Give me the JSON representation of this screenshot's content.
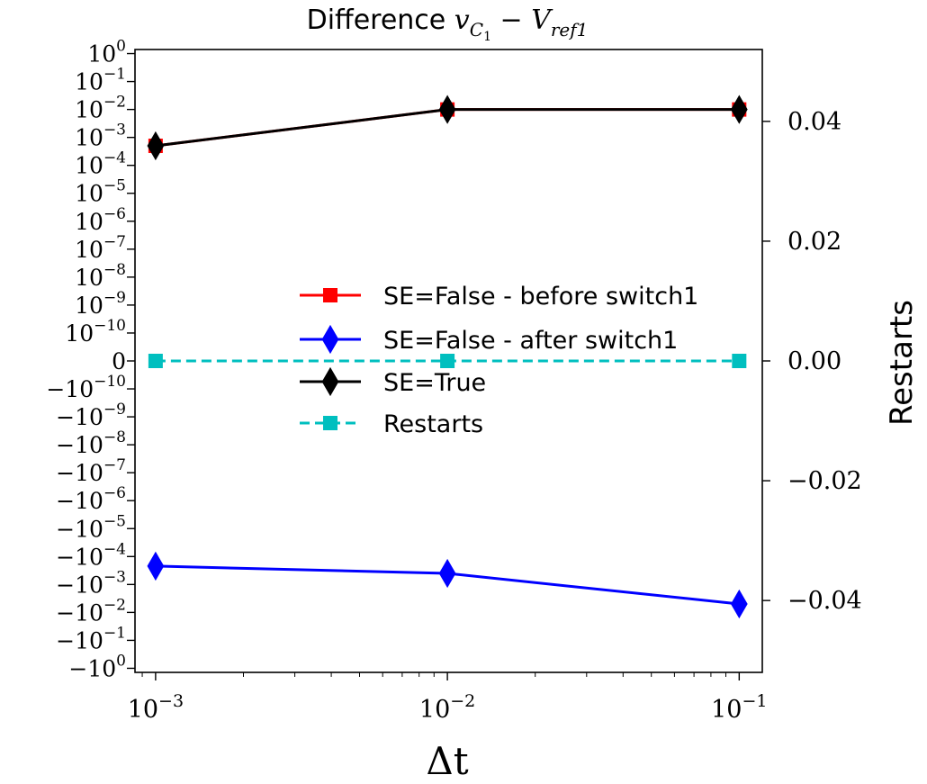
{
  "chart_data": {
    "type": "line",
    "title": {
      "prefix": "Difference ",
      "v": "v",
      "v_sub": "C",
      "v_subsub": "1",
      "minus": " − ",
      "V": "V",
      "V_sub": "ref1"
    },
    "xlabel": "Δt",
    "ylabel_right": "Restarts",
    "x": [
      0.001,
      0.01,
      0.1
    ],
    "x_scale": "log",
    "xlim": [
      0.00085,
      0.12
    ],
    "x_ticks": [
      {
        "base": "10",
        "exp": "−3"
      },
      {
        "base": "10",
        "exp": "−2"
      },
      {
        "base": "10",
        "exp": "−1"
      }
    ],
    "y_scale": "symlog",
    "y_linthresh": 1e-10,
    "ylim": [
      -1.4,
      1.4
    ],
    "y_ticks": [
      {
        "sign": "",
        "base": "10",
        "exp": "0"
      },
      {
        "sign": "",
        "base": "10",
        "exp": "−1"
      },
      {
        "sign": "",
        "base": "10",
        "exp": "−2"
      },
      {
        "sign": "",
        "base": "10",
        "exp": "−3"
      },
      {
        "sign": "",
        "base": "10",
        "exp": "−4"
      },
      {
        "sign": "",
        "base": "10",
        "exp": "−5"
      },
      {
        "sign": "",
        "base": "10",
        "exp": "−6"
      },
      {
        "sign": "",
        "base": "10",
        "exp": "−7"
      },
      {
        "sign": "",
        "base": "10",
        "exp": "−8"
      },
      {
        "sign": "",
        "base": "10",
        "exp": "−9"
      },
      {
        "sign": "",
        "base": "10",
        "exp": "−10"
      },
      {
        "sign": "",
        "base": "0",
        "exp": ""
      },
      {
        "sign": "−",
        "base": "10",
        "exp": "−10"
      },
      {
        "sign": "−",
        "base": "10",
        "exp": "−9"
      },
      {
        "sign": "−",
        "base": "10",
        "exp": "−8"
      },
      {
        "sign": "−",
        "base": "10",
        "exp": "−7"
      },
      {
        "sign": "−",
        "base": "10",
        "exp": "−6"
      },
      {
        "sign": "−",
        "base": "10",
        "exp": "−5"
      },
      {
        "sign": "−",
        "base": "10",
        "exp": "−4"
      },
      {
        "sign": "−",
        "base": "10",
        "exp": "−3"
      },
      {
        "sign": "−",
        "base": "10",
        "exp": "−2"
      },
      {
        "sign": "−",
        "base": "10",
        "exp": "−1"
      },
      {
        "sign": "−",
        "base": "10",
        "exp": "0"
      }
    ],
    "y2lim": [
      -0.052,
      0.052
    ],
    "y2_ticks": [
      "0.04",
      "0.02",
      "0.00",
      "−0.02",
      "−0.04"
    ],
    "y2_tick_values": [
      0.04,
      0.02,
      0.0,
      -0.02,
      -0.04
    ],
    "series": [
      {
        "name": "SE=False - before switch1",
        "axis": "left",
        "values": [
          0.0005,
          0.01,
          0.01
        ],
        "color": "#ff0000",
        "marker": "square",
        "dashed": false
      },
      {
        "name": "SE=False - after switch1",
        "axis": "left",
        "values": [
          -0.00022,
          -0.0004,
          -0.005
        ],
        "color": "#0000ff",
        "marker": "diamond",
        "dashed": false
      },
      {
        "name": "SE=True",
        "axis": "left",
        "values": [
          0.0005,
          0.01,
          0.01
        ],
        "color": "#000000",
        "marker": "diamond",
        "dashed": false
      },
      {
        "name": "Restarts",
        "axis": "right",
        "values": [
          0,
          0,
          0
        ],
        "color": "#00bfbf",
        "marker": "square",
        "dashed": true
      }
    ],
    "legend_position": "center",
    "grid": false
  }
}
